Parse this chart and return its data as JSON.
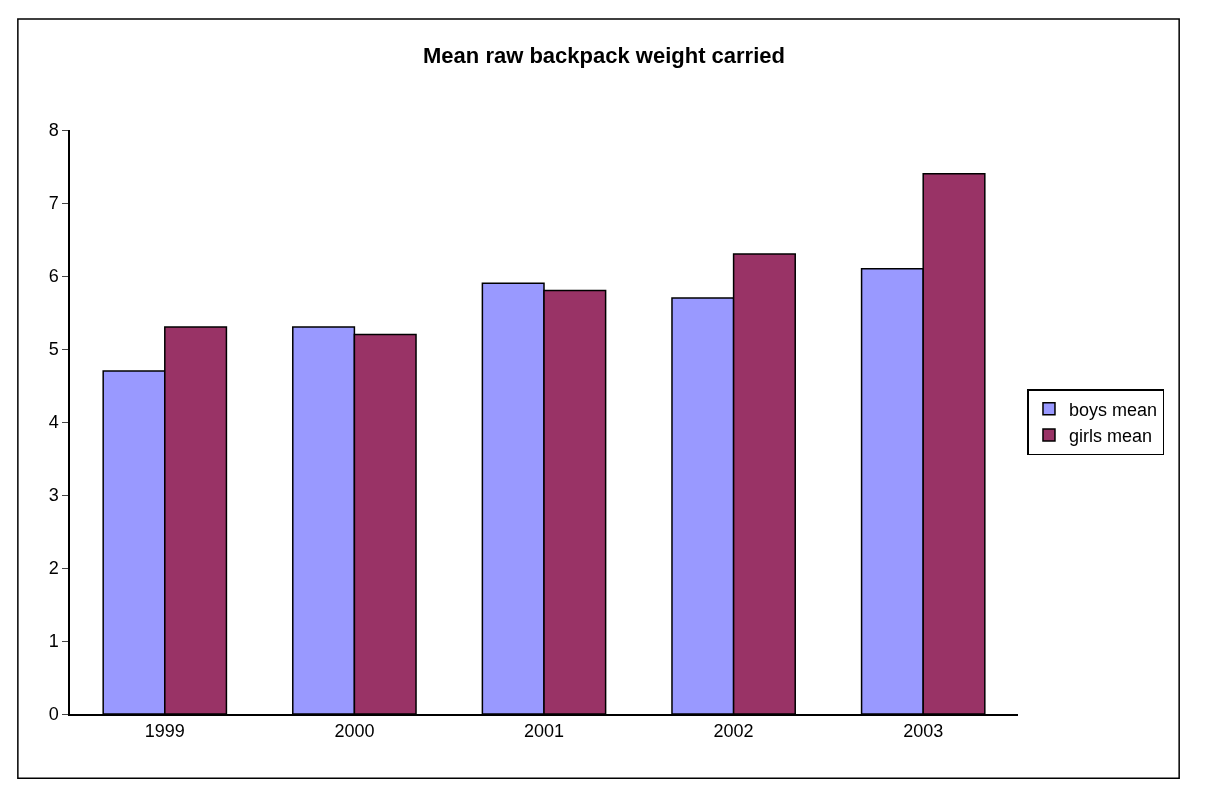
{
  "chart_data": {
    "type": "bar",
    "title": "Mean raw backpack weight carried",
    "categories": [
      "1999",
      "2000",
      "2001",
      "2002",
      "2003"
    ],
    "series": [
      {
        "name": "boys mean",
        "color": "#9999ff",
        "values": [
          4.7,
          5.3,
          5.9,
          5.7,
          6.1
        ]
      },
      {
        "name": "girls mean",
        "color": "#993366",
        "values": [
          5.3,
          5.2,
          5.8,
          6.3,
          7.4
        ]
      }
    ],
    "ylim": [
      0,
      8
    ],
    "yticks": [
      0,
      1,
      2,
      3,
      4,
      5,
      6,
      7,
      8
    ],
    "grid": false,
    "legend": "right"
  }
}
